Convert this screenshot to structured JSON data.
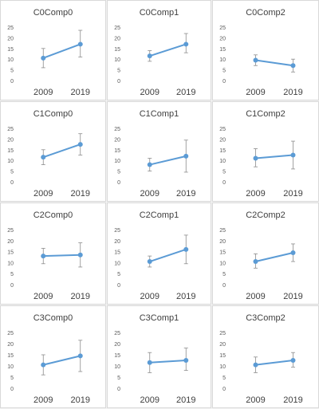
{
  "chart_data": [
    {
      "type": "line",
      "title": "C0Comp0",
      "x": [
        "2009",
        "2019"
      ],
      "values": [
        10.5,
        17.0
      ],
      "err_low": [
        6.0,
        11.0
      ],
      "err_high": [
        15.0,
        23.5
      ],
      "ylim": [
        0,
        25
      ],
      "yticks": [
        0,
        5,
        10,
        15,
        20,
        25
      ],
      "accent": "#5b9bd5",
      "grid": false
    },
    {
      "type": "line",
      "title": "C0Comp1",
      "x": [
        "2009",
        "2019"
      ],
      "values": [
        11.5,
        17.0
      ],
      "err_low": [
        9.0,
        13.0
      ],
      "err_high": [
        14.0,
        22.0
      ],
      "ylim": [
        0,
        25
      ],
      "yticks": [
        0,
        5,
        10,
        15,
        20,
        25
      ],
      "accent": "#5b9bd5",
      "grid": false
    },
    {
      "type": "line",
      "title": "C0Comp2",
      "x": [
        "2009",
        "2019"
      ],
      "values": [
        9.5,
        7.0
      ],
      "err_low": [
        7.0,
        4.0
      ],
      "err_high": [
        12.0,
        10.0
      ],
      "ylim": [
        0,
        25
      ],
      "yticks": [
        0,
        5,
        10,
        15,
        20,
        25
      ],
      "accent": "#5b9bd5",
      "grid": false
    },
    {
      "type": "line",
      "title": "C1Comp0",
      "x": [
        "2009",
        "2019"
      ],
      "values": [
        11.5,
        17.5
      ],
      "err_low": [
        8.0,
        12.5
      ],
      "err_high": [
        15.0,
        22.5
      ],
      "ylim": [
        0,
        25
      ],
      "yticks": [
        0,
        5,
        10,
        15,
        20,
        25
      ],
      "accent": "#5b9bd5",
      "grid": false
    },
    {
      "type": "line",
      "title": "C1Comp1",
      "x": [
        "2009",
        "2019"
      ],
      "values": [
        8.0,
        12.0
      ],
      "err_low": [
        5.0,
        4.5
      ],
      "err_high": [
        11.0,
        19.5
      ],
      "ylim": [
        0,
        25
      ],
      "yticks": [
        0,
        5,
        10,
        15,
        20,
        25
      ],
      "accent": "#5b9bd5",
      "grid": false
    },
    {
      "type": "line",
      "title": "C1Comp2",
      "x": [
        "2009",
        "2019"
      ],
      "values": [
        11.0,
        12.5
      ],
      "err_low": [
        7.0,
        6.0
      ],
      "err_high": [
        15.5,
        19.0
      ],
      "ylim": [
        0,
        25
      ],
      "yticks": [
        0,
        5,
        10,
        15,
        20,
        25
      ],
      "accent": "#5b9bd5",
      "grid": false
    },
    {
      "type": "line",
      "title": "C2Comp0",
      "x": [
        "2009",
        "2019"
      ],
      "values": [
        13.0,
        13.5
      ],
      "err_low": [
        9.5,
        8.0
      ],
      "err_high": [
        16.5,
        19.0
      ],
      "ylim": [
        0,
        25
      ],
      "yticks": [
        0,
        5,
        10,
        15,
        20,
        25
      ],
      "accent": "#5b9bd5",
      "grid": false
    },
    {
      "type": "line",
      "title": "C2Comp1",
      "x": [
        "2009",
        "2019"
      ],
      "values": [
        10.5,
        16.0
      ],
      "err_low": [
        8.0,
        9.5
      ],
      "err_high": [
        13.0,
        22.5
      ],
      "ylim": [
        0,
        25
      ],
      "yticks": [
        0,
        5,
        10,
        15,
        20,
        25
      ],
      "accent": "#5b9bd5",
      "grid": false
    },
    {
      "type": "line",
      "title": "C2Comp2",
      "x": [
        "2009",
        "2019"
      ],
      "values": [
        10.5,
        14.5
      ],
      "err_low": [
        7.5,
        10.5
      ],
      "err_high": [
        14.0,
        18.5
      ],
      "ylim": [
        0,
        25
      ],
      "yticks": [
        0,
        5,
        10,
        15,
        20,
        25
      ],
      "accent": "#5b9bd5",
      "grid": false
    },
    {
      "type": "line",
      "title": "C3Comp0",
      "x": [
        "2009",
        "2019"
      ],
      "values": [
        10.5,
        14.5
      ],
      "err_low": [
        6.0,
        7.5
      ],
      "err_high": [
        15.0,
        21.5
      ],
      "ylim": [
        0,
        25
      ],
      "yticks": [
        0,
        5,
        10,
        15,
        20,
        25
      ],
      "accent": "#5b9bd5",
      "grid": false
    },
    {
      "type": "line",
      "title": "C3Comp1",
      "x": [
        "2009",
        "2019"
      ],
      "values": [
        11.5,
        12.5
      ],
      "err_low": [
        7.0,
        8.0
      ],
      "err_high": [
        16.0,
        18.0
      ],
      "ylim": [
        0,
        25
      ],
      "yticks": [
        0,
        5,
        10,
        15,
        20,
        25
      ],
      "accent": "#5b9bd5",
      "grid": false
    },
    {
      "type": "line",
      "title": "C3Comp2",
      "x": [
        "2009",
        "2019"
      ],
      "values": [
        10.5,
        12.5
      ],
      "err_low": [
        7.0,
        9.5
      ],
      "err_high": [
        14.0,
        16.0
      ],
      "ylim": [
        0,
        25
      ],
      "yticks": [
        0,
        5,
        10,
        15,
        20,
        25
      ],
      "accent": "#5b9bd5",
      "grid": false
    }
  ]
}
